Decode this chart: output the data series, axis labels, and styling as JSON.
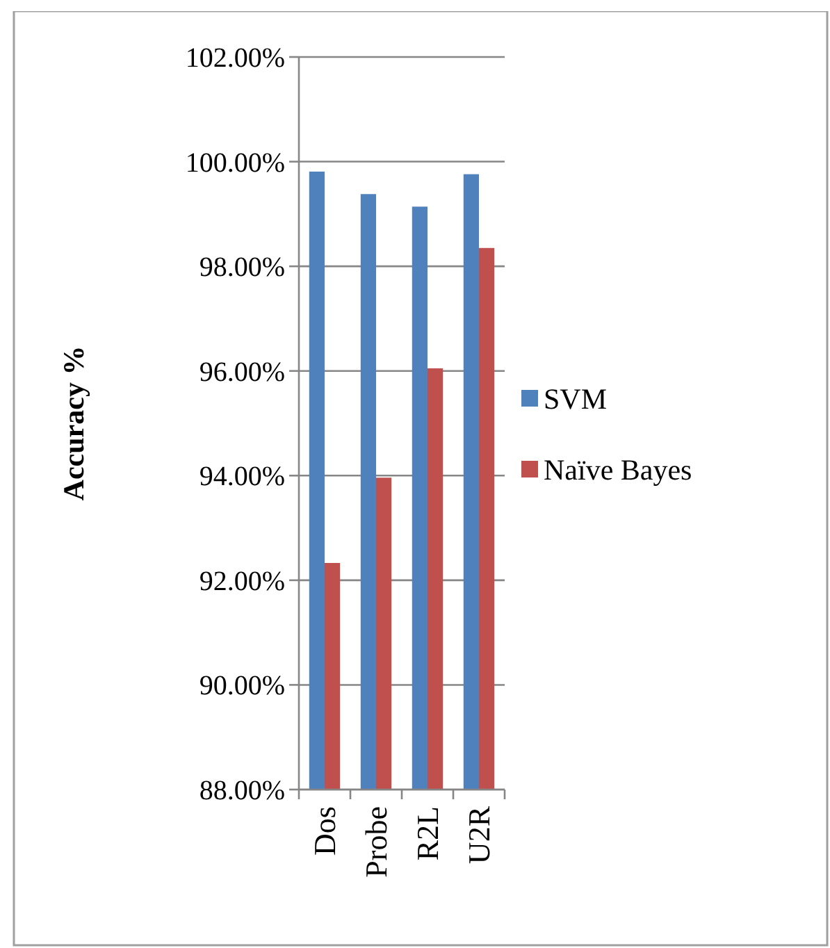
{
  "chart_data": {
    "type": "bar",
    "ylabel": "Accuracy %",
    "categories": [
      "Dos",
      "Probe",
      "R2L",
      "U2R"
    ],
    "series": [
      {
        "name": "SVM",
        "color": "#4f81bd",
        "values": [
          99.81,
          99.38,
          99.14,
          99.76
        ]
      },
      {
        "name": "Naïve Bayes",
        "color": "#c0504d",
        "values": [
          92.33,
          93.96,
          96.05,
          98.35
        ]
      }
    ],
    "ylim": [
      88,
      102
    ],
    "yticks": [
      {
        "value": 88,
        "label": "88.00%"
      },
      {
        "value": 90,
        "label": "90.00%"
      },
      {
        "value": 92,
        "label": "92.00%"
      },
      {
        "value": 94,
        "label": "94.00%"
      },
      {
        "value": 96,
        "label": "96.00%"
      },
      {
        "value": 98,
        "label": "98.00%"
      },
      {
        "value": 100,
        "label": "100.00%"
      },
      {
        "value": 102,
        "label": "102.00%"
      }
    ],
    "grid": "y",
    "legend": "right"
  }
}
